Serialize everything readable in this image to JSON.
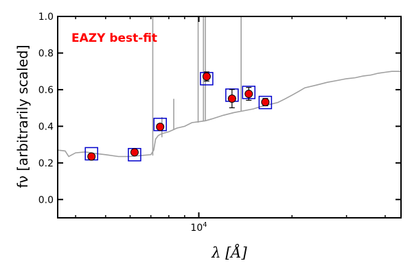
{
  "chart_data": {
    "type": "scatter",
    "title": "",
    "annotation": {
      "text": "EAZY best-fit",
      "color": "#ff0000"
    },
    "xlabel": "λ [Å]",
    "ylabel": "fν [arbitrarily scaled]",
    "x_scale": "log",
    "xlim": [
      3500,
      45000
    ],
    "ylim": [
      -0.1,
      1.0
    ],
    "x_tick_labels": [
      "10^4"
    ],
    "y_ticks": [
      0.0,
      0.2,
      0.4,
      0.6,
      0.8,
      1.0
    ],
    "y_tick_labels": [
      "0.0",
      "0.2",
      "0.4",
      "0.6",
      "0.8",
      "1.0"
    ],
    "grid": false,
    "colors": {
      "template": "#a0a0a0",
      "observed": "#ee0000",
      "model": "#0000cc"
    },
    "series": [
      {
        "marker": "circle",
        "x": [
          4500,
          6200,
          7500,
          10600,
          12800,
          14500,
          16400
        ],
        "y": [
          0.235,
          0.258,
          0.397,
          0.672,
          0.551,
          0.577,
          0.532
        ],
        "yerr": [
          0.01,
          0.01,
          0.012,
          0.025,
          0.05,
          0.035,
          0.02
        ]
      },
      {
        "marker": "square",
        "x": [
          4500,
          6200,
          7500,
          10600,
          12800,
          14500,
          16400
        ],
        "y": [
          0.25,
          0.245,
          0.41,
          0.66,
          0.57,
          0.585,
          0.53
        ]
      },
      {
        "type": "line",
        "x": [
          3500,
          3700,
          3800,
          4000,
          4300,
          4600,
          5000,
          5500,
          6000,
          6500,
          7000,
          7150,
          7250,
          7400,
          7600,
          8000,
          8500,
          9000,
          9500,
          10000,
          10500,
          11000,
          12000,
          13000,
          14000,
          15000,
          16000,
          17000,
          18000,
          19000,
          20000,
          21000,
          22000,
          24000,
          26000,
          28000,
          30000,
          32000,
          34000,
          36000,
          38000,
          40000,
          42000,
          45000
        ],
        "y": [
          0.27,
          0.265,
          0.235,
          0.255,
          0.26,
          0.252,
          0.245,
          0.235,
          0.235,
          0.24,
          0.245,
          0.27,
          0.33,
          0.35,
          0.36,
          0.37,
          0.39,
          0.4,
          0.42,
          0.425,
          0.43,
          0.44,
          0.46,
          0.475,
          0.485,
          0.495,
          0.51,
          0.52,
          0.53,
          0.55,
          0.57,
          0.59,
          0.61,
          0.625,
          0.64,
          0.65,
          0.66,
          0.665,
          0.675,
          0.68,
          0.69,
          0.695,
          0.7,
          0.7
        ]
      }
    ]
  }
}
